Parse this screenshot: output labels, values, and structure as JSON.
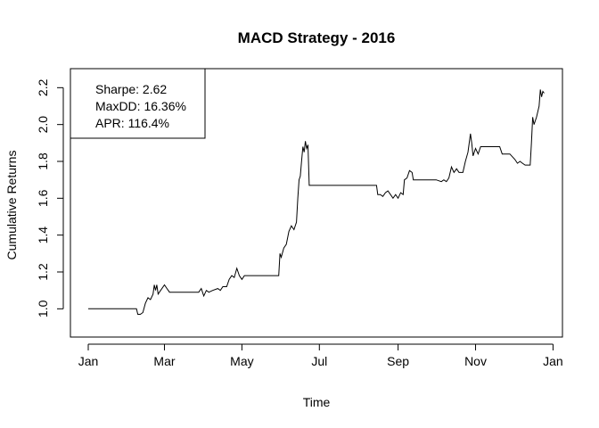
{
  "chart_data": {
    "type": "line",
    "title": "MACD Strategy - 2016",
    "xlabel": "Time",
    "ylabel": "Cumulative Returns",
    "xlim": [
      "2016-01-01",
      "2016-12-31"
    ],
    "ylim": [
      0.9,
      2.25
    ],
    "x_ticks": [
      {
        "date": "2016-01-01",
        "label": "Jan"
      },
      {
        "date": "2016-03-01",
        "label": "Mar"
      },
      {
        "date": "2016-05-01",
        "label": "May"
      },
      {
        "date": "2016-07-01",
        "label": "Jul"
      },
      {
        "date": "2016-09-01",
        "label": "Sep"
      },
      {
        "date": "2016-11-01",
        "label": "Nov"
      },
      {
        "date": "2017-01-01",
        "label": "Jan"
      }
    ],
    "y_ticks": [
      1.0,
      1.2,
      1.4,
      1.6,
      1.8,
      2.0,
      2.2
    ],
    "y_tick_labels": [
      "1.0",
      "1.2",
      "1.4",
      "1.6",
      "1.8",
      "2.0",
      "2.2"
    ],
    "legend": {
      "placement": "top-left",
      "entries": [
        "Sharpe: 2.62",
        "MaxDD: 16.36%",
        "APR: 116.4%"
      ]
    },
    "series": [
      {
        "color": "#000000",
        "points": [
          [
            "2016-01-01",
            1.0
          ],
          [
            "2016-02-05",
            1.0
          ],
          [
            "2016-02-08",
            1.0
          ],
          [
            "2016-02-09",
            0.97
          ],
          [
            "2016-02-11",
            0.97
          ],
          [
            "2016-02-13",
            0.98
          ],
          [
            "2016-02-15",
            1.03
          ],
          [
            "2016-02-17",
            1.06
          ],
          [
            "2016-02-19",
            1.05
          ],
          [
            "2016-02-21",
            1.08
          ],
          [
            "2016-02-22",
            1.13
          ],
          [
            "2016-02-23",
            1.1
          ],
          [
            "2016-02-24",
            1.13
          ],
          [
            "2016-02-25",
            1.08
          ],
          [
            "2016-02-27",
            1.1
          ],
          [
            "2016-03-01",
            1.13
          ],
          [
            "2016-03-03",
            1.11
          ],
          [
            "2016-03-05",
            1.09
          ],
          [
            "2016-03-10",
            1.09
          ],
          [
            "2016-03-20",
            1.09
          ],
          [
            "2016-03-28",
            1.09
          ],
          [
            "2016-03-30",
            1.11
          ],
          [
            "2016-04-01",
            1.07
          ],
          [
            "2016-04-03",
            1.1
          ],
          [
            "2016-04-05",
            1.09
          ],
          [
            "2016-04-08",
            1.1
          ],
          [
            "2016-04-12",
            1.11
          ],
          [
            "2016-04-14",
            1.1
          ],
          [
            "2016-04-16",
            1.12
          ],
          [
            "2016-04-19",
            1.12
          ],
          [
            "2016-04-21",
            1.16
          ],
          [
            "2016-04-23",
            1.18
          ],
          [
            "2016-04-25",
            1.17
          ],
          [
            "2016-04-27",
            1.22
          ],
          [
            "2016-04-29",
            1.18
          ],
          [
            "2016-05-01",
            1.16
          ],
          [
            "2016-05-03",
            1.18
          ],
          [
            "2016-05-10",
            1.18
          ],
          [
            "2016-05-20",
            1.18
          ],
          [
            "2016-05-30",
            1.18
          ],
          [
            "2016-05-31",
            1.3
          ],
          [
            "2016-06-01",
            1.28
          ],
          [
            "2016-06-03",
            1.33
          ],
          [
            "2016-06-05",
            1.35
          ],
          [
            "2016-06-07",
            1.42
          ],
          [
            "2016-06-09",
            1.45
          ],
          [
            "2016-06-11",
            1.43
          ],
          [
            "2016-06-13",
            1.47
          ],
          [
            "2016-06-14",
            1.6
          ],
          [
            "2016-06-15",
            1.7
          ],
          [
            "2016-06-16",
            1.72
          ],
          [
            "2016-06-17",
            1.8
          ],
          [
            "2016-06-18",
            1.88
          ],
          [
            "2016-06-19",
            1.85
          ],
          [
            "2016-06-20",
            1.91
          ],
          [
            "2016-06-21",
            1.87
          ],
          [
            "2016-06-22",
            1.89
          ],
          [
            "2016-06-23",
            1.67
          ],
          [
            "2016-07-10",
            1.67
          ],
          [
            "2016-08-01",
            1.67
          ],
          [
            "2016-08-15",
            1.67
          ],
          [
            "2016-08-16",
            1.62
          ],
          [
            "2016-08-18",
            1.62
          ],
          [
            "2016-08-20",
            1.61
          ],
          [
            "2016-08-22",
            1.63
          ],
          [
            "2016-08-24",
            1.64
          ],
          [
            "2016-08-26",
            1.62
          ],
          [
            "2016-08-28",
            1.6
          ],
          [
            "2016-08-30",
            1.62
          ],
          [
            "2016-09-01",
            1.6
          ],
          [
            "2016-09-03",
            1.63
          ],
          [
            "2016-09-05",
            1.62
          ],
          [
            "2016-09-06",
            1.7
          ],
          [
            "2016-09-08",
            1.71
          ],
          [
            "2016-09-10",
            1.75
          ],
          [
            "2016-09-12",
            1.74
          ],
          [
            "2016-09-13",
            1.7
          ],
          [
            "2016-09-20",
            1.7
          ],
          [
            "2016-10-01",
            1.7
          ],
          [
            "2016-10-05",
            1.69
          ],
          [
            "2016-10-07",
            1.7
          ],
          [
            "2016-10-09",
            1.69
          ],
          [
            "2016-10-11",
            1.71
          ],
          [
            "2016-10-13",
            1.77
          ],
          [
            "2016-10-15",
            1.74
          ],
          [
            "2016-10-17",
            1.76
          ],
          [
            "2016-10-19",
            1.74
          ],
          [
            "2016-10-22",
            1.74
          ],
          [
            "2016-10-24",
            1.8
          ],
          [
            "2016-10-26",
            1.85
          ],
          [
            "2016-10-28",
            1.95
          ],
          [
            "2016-10-29",
            1.9
          ],
          [
            "2016-10-30",
            1.83
          ],
          [
            "2016-11-01",
            1.87
          ],
          [
            "2016-11-03",
            1.84
          ],
          [
            "2016-11-05",
            1.88
          ],
          [
            "2016-11-10",
            1.88
          ],
          [
            "2016-11-20",
            1.88
          ],
          [
            "2016-11-22",
            1.84
          ],
          [
            "2016-11-28",
            1.84
          ],
          [
            "2016-12-02",
            1.81
          ],
          [
            "2016-12-04",
            1.79
          ],
          [
            "2016-12-06",
            1.8
          ],
          [
            "2016-12-08",
            1.79
          ],
          [
            "2016-12-10",
            1.78
          ],
          [
            "2016-12-14",
            1.78
          ],
          [
            "2016-12-15",
            1.9
          ],
          [
            "2016-12-16",
            2.04
          ],
          [
            "2016-12-17",
            2.0
          ],
          [
            "2016-12-19",
            2.04
          ],
          [
            "2016-12-21",
            2.1
          ],
          [
            "2016-12-22",
            2.19
          ],
          [
            "2016-12-23",
            2.15
          ],
          [
            "2016-12-24",
            2.18
          ],
          [
            "2016-12-25",
            2.17
          ]
        ]
      }
    ]
  }
}
